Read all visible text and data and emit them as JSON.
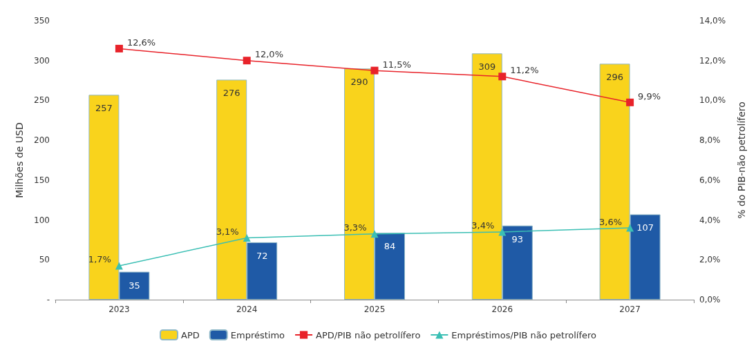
{
  "chart_data": {
    "type": "bar",
    "categories": [
      "2023",
      "2024",
      "2025",
      "2026",
      "2027"
    ],
    "ylabel": "Milhões de USD",
    "y2label": "% do PIB-não petrolífero",
    "ylim": [
      0,
      350
    ],
    "yticks": [
      {
        "value": 0,
        "label": "-"
      },
      50,
      100,
      150,
      200,
      250,
      300,
      350
    ],
    "y2lim": [
      0,
      14
    ],
    "y2ticks": [
      {
        "value": 0,
        "label": "0,0%"
      },
      {
        "value": 2,
        "label": "2,0%"
      },
      {
        "value": 4,
        "label": "4,0%"
      },
      {
        "value": 6,
        "label": "6,0%"
      },
      {
        "value": 8,
        "label": "8,0%"
      },
      {
        "value": 10,
        "label": "10,0%"
      },
      {
        "value": 12,
        "label": "12,0%"
      },
      {
        "value": 14,
        "label": "14,0%"
      }
    ],
    "grid": false,
    "legend": "bottom",
    "series": [
      {
        "name": "APD",
        "color": "#f9d31c",
        "values": [
          257,
          276,
          290,
          309,
          296
        ],
        "value_labels": [
          "257",
          "276",
          "290",
          "309",
          "296"
        ]
      },
      {
        "name": "Empréstimo",
        "color": "#1f5aa6",
        "values": [
          35,
          72,
          84,
          93,
          107
        ],
        "value_labels": [
          "35",
          "72",
          "84",
          "93",
          "107"
        ]
      },
      {
        "name": "APD/PIB não petrolífero",
        "type": "line",
        "axis": "y2",
        "marker": "square",
        "color": "#e8232a",
        "values": [
          12.6,
          12.0,
          11.5,
          11.2,
          9.9
        ],
        "value_labels": [
          "12,6%",
          "12,0%",
          "11,5%",
          "11,2%",
          "9,9%"
        ]
      },
      {
        "name": "Empréstimos/PIB não petrolífero",
        "type": "line",
        "axis": "y2",
        "marker": "triangle",
        "color": "#3bbfb4",
        "values": [
          1.7,
          3.1,
          3.3,
          3.4,
          3.6
        ],
        "value_labels": [
          "1,7%",
          "3,1%",
          "3,3%",
          "3,4%",
          "3,6%"
        ]
      }
    ]
  }
}
